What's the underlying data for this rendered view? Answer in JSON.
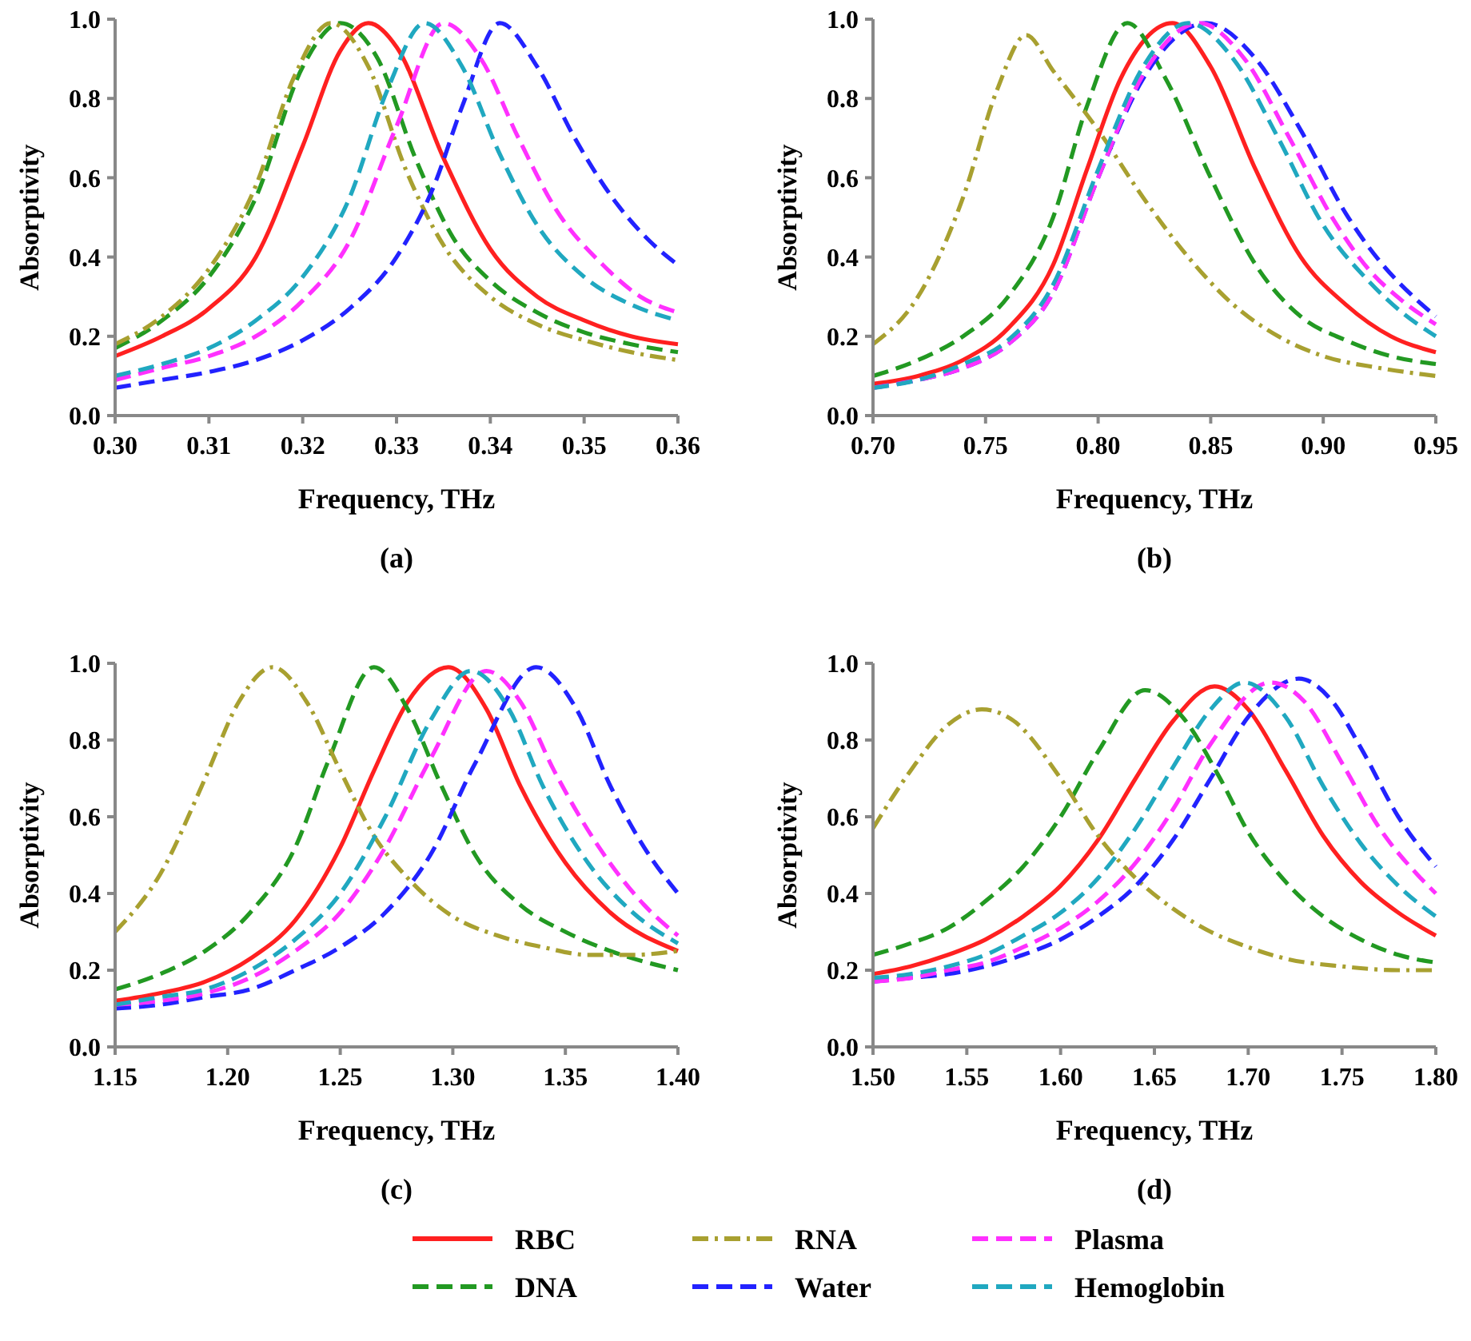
{
  "chart_data": [
    {
      "type": "line",
      "title": "(a)",
      "xlabel": "Frequency, THz",
      "ylabel": "Absorptivity",
      "xlim": [
        0.3,
        0.36
      ],
      "ylim": [
        0,
        1
      ],
      "xticks": [
        {
          "value": 0.3,
          "label": "0.30"
        },
        {
          "value": 0.31,
          "label": "0.31"
        },
        {
          "value": 0.32,
          "label": "0.32"
        },
        {
          "value": 0.33,
          "label": "0.33"
        },
        {
          "value": 0.34,
          "label": "0.34"
        },
        {
          "value": 0.35,
          "label": "0.35"
        },
        {
          "value": 0.36,
          "label": "0.36"
        }
      ],
      "yticks": [
        {
          "value": 0,
          "label": "0.0"
        },
        {
          "value": 0.2,
          "label": "0.2"
        },
        {
          "value": 0.4,
          "label": "0.4"
        },
        {
          "value": 0.6,
          "label": "0.6"
        },
        {
          "value": 0.8,
          "label": "0.8"
        },
        {
          "value": 1,
          "label": "1.0"
        }
      ],
      "grid": false,
      "legend": "bottom",
      "marker": "none",
      "series": [
        {
          "name": "RBC",
          "color": "#ff2020",
          "line_style": "solid",
          "x": [
            0.3,
            0.305,
            0.31,
            0.315,
            0.32,
            0.324,
            0.327,
            0.33,
            0.335,
            0.34,
            0.345,
            0.35,
            0.355,
            0.36
          ],
          "values": [
            0.15,
            0.2,
            0.27,
            0.4,
            0.68,
            0.92,
            0.99,
            0.93,
            0.65,
            0.42,
            0.3,
            0.24,
            0.2,
            0.18
          ]
        },
        {
          "name": "DNA",
          "color": "#229922",
          "line_style": "dashed",
          "x": [
            0.3,
            0.305,
            0.31,
            0.315,
            0.32,
            0.324,
            0.328,
            0.332,
            0.336,
            0.34,
            0.345,
            0.35,
            0.355,
            0.36
          ],
          "values": [
            0.17,
            0.24,
            0.35,
            0.55,
            0.88,
            0.99,
            0.9,
            0.65,
            0.45,
            0.34,
            0.26,
            0.21,
            0.18,
            0.16
          ]
        },
        {
          "name": "RNA",
          "color": "#a8a030",
          "line_style": "dashdot",
          "x": [
            0.3,
            0.305,
            0.31,
            0.315,
            0.319,
            0.323,
            0.327,
            0.331,
            0.335,
            0.34,
            0.345,
            0.35,
            0.355,
            0.36
          ],
          "values": [
            0.18,
            0.25,
            0.37,
            0.58,
            0.85,
            0.99,
            0.88,
            0.62,
            0.43,
            0.3,
            0.23,
            0.19,
            0.16,
            0.14
          ]
        },
        {
          "name": "Water",
          "color": "#2222ff",
          "line_style": "dashed",
          "x": [
            0.3,
            0.305,
            0.31,
            0.315,
            0.32,
            0.325,
            0.33,
            0.334,
            0.337,
            0.341,
            0.345,
            0.349,
            0.353,
            0.357,
            0.36
          ],
          "values": [
            0.07,
            0.09,
            0.11,
            0.14,
            0.19,
            0.27,
            0.4,
            0.58,
            0.78,
            0.99,
            0.88,
            0.7,
            0.55,
            0.44,
            0.38
          ]
        },
        {
          "name": "Plasma",
          "color": "#ff30ff",
          "line_style": "dashed",
          "x": [
            0.3,
            0.305,
            0.31,
            0.315,
            0.32,
            0.325,
            0.33,
            0.335,
            0.339,
            0.343,
            0.347,
            0.352,
            0.356,
            0.36
          ],
          "values": [
            0.09,
            0.12,
            0.15,
            0.2,
            0.29,
            0.44,
            0.73,
            0.99,
            0.9,
            0.7,
            0.52,
            0.38,
            0.3,
            0.26
          ]
        },
        {
          "name": "Hemoglobin",
          "color": "#20a8c0",
          "line_style": "dashed",
          "x": [
            0.3,
            0.305,
            0.31,
            0.315,
            0.32,
            0.325,
            0.329,
            0.333,
            0.337,
            0.341,
            0.345,
            0.35,
            0.355,
            0.36
          ],
          "values": [
            0.1,
            0.13,
            0.17,
            0.24,
            0.35,
            0.55,
            0.82,
            0.99,
            0.88,
            0.66,
            0.48,
            0.35,
            0.28,
            0.24
          ]
        }
      ]
    },
    {
      "type": "line",
      "title": "(b)",
      "xlabel": "Frequency, THz",
      "ylabel": "Absorptivity",
      "xlim": [
        0.7,
        0.95
      ],
      "ylim": [
        0,
        1
      ],
      "xticks": [
        {
          "value": 0.7,
          "label": "0.70"
        },
        {
          "value": 0.75,
          "label": "0.75"
        },
        {
          "value": 0.8,
          "label": "0.80"
        },
        {
          "value": 0.85,
          "label": "0.85"
        },
        {
          "value": 0.9,
          "label": "0.90"
        },
        {
          "value": 0.95,
          "label": "0.95"
        }
      ],
      "yticks": [
        {
          "value": 0,
          "label": "0.0"
        },
        {
          "value": 0.2,
          "label": "0.2"
        },
        {
          "value": 0.4,
          "label": "0.4"
        },
        {
          "value": 0.6,
          "label": "0.6"
        },
        {
          "value": 0.8,
          "label": "0.8"
        },
        {
          "value": 1,
          "label": "1.0"
        }
      ],
      "grid": false,
      "marker": "none",
      "series": [
        {
          "color": "#ff2020",
          "line_style": "solid",
          "x": [
            0.7,
            0.72,
            0.74,
            0.76,
            0.78,
            0.795,
            0.81,
            0.833,
            0.85,
            0.87,
            0.89,
            0.91,
            0.93,
            0.95
          ],
          "values": [
            0.08,
            0.1,
            0.14,
            0.22,
            0.38,
            0.62,
            0.85,
            0.99,
            0.88,
            0.62,
            0.4,
            0.28,
            0.2,
            0.16
          ]
        },
        {
          "color": "#229922",
          "line_style": "dashed",
          "x": [
            0.7,
            0.72,
            0.74,
            0.76,
            0.78,
            0.795,
            0.813,
            0.83,
            0.85,
            0.87,
            0.89,
            0.91,
            0.93,
            0.95
          ],
          "values": [
            0.1,
            0.14,
            0.2,
            0.3,
            0.5,
            0.78,
            0.99,
            0.85,
            0.6,
            0.38,
            0.25,
            0.19,
            0.15,
            0.13
          ]
        },
        {
          "color": "#a8a030",
          "line_style": "dashdot",
          "x": [
            0.7,
            0.72,
            0.74,
            0.755,
            0.768,
            0.78,
            0.8,
            0.82,
            0.84,
            0.86,
            0.88,
            0.9,
            0.925,
            0.95
          ],
          "values": [
            0.18,
            0.3,
            0.55,
            0.82,
            0.96,
            0.87,
            0.72,
            0.55,
            0.4,
            0.28,
            0.2,
            0.15,
            0.12,
            0.1
          ]
        },
        {
          "color": "#2222ff",
          "line_style": "dashed",
          "x": [
            0.7,
            0.72,
            0.74,
            0.76,
            0.78,
            0.8,
            0.82,
            0.848,
            0.87,
            0.89,
            0.91,
            0.925,
            0.94,
            0.95
          ],
          "values": [
            0.07,
            0.09,
            0.12,
            0.18,
            0.31,
            0.6,
            0.85,
            0.99,
            0.9,
            0.72,
            0.51,
            0.39,
            0.3,
            0.25
          ]
        },
        {
          "color": "#ff30ff",
          "line_style": "dashed",
          "x": [
            0.7,
            0.72,
            0.74,
            0.76,
            0.78,
            0.8,
            0.82,
            0.845,
            0.865,
            0.885,
            0.905,
            0.92,
            0.935,
            0.95
          ],
          "values": [
            0.07,
            0.09,
            0.12,
            0.18,
            0.31,
            0.6,
            0.86,
            0.99,
            0.9,
            0.7,
            0.49,
            0.37,
            0.29,
            0.23
          ]
        },
        {
          "color": "#20a8c0",
          "line_style": "dashed",
          "x": [
            0.7,
            0.72,
            0.74,
            0.76,
            0.78,
            0.8,
            0.82,
            0.84,
            0.86,
            0.88,
            0.9,
            0.92,
            0.935,
            0.95
          ],
          "values": [
            0.07,
            0.09,
            0.13,
            0.19,
            0.33,
            0.62,
            0.88,
            0.99,
            0.9,
            0.7,
            0.48,
            0.34,
            0.26,
            0.2
          ]
        }
      ]
    },
    {
      "type": "line",
      "title": "(c)",
      "xlabel": "Frequency, THz",
      "ylabel": "Absorptivity",
      "xlim": [
        1.15,
        1.4
      ],
      "ylim": [
        0,
        1
      ],
      "xticks": [
        {
          "value": 1.15,
          "label": "1.15"
        },
        {
          "value": 1.2,
          "label": "1.20"
        },
        {
          "value": 1.25,
          "label": "1.25"
        },
        {
          "value": 1.3,
          "label": "1.30"
        },
        {
          "value": 1.35,
          "label": "1.35"
        },
        {
          "value": 1.4,
          "label": "1.40"
        }
      ],
      "yticks": [
        {
          "value": 0,
          "label": "0.0"
        },
        {
          "value": 0.2,
          "label": "0.2"
        },
        {
          "value": 0.4,
          "label": "0.4"
        },
        {
          "value": 0.6,
          "label": "0.6"
        },
        {
          "value": 0.8,
          "label": "0.8"
        },
        {
          "value": 1,
          "label": "1.0"
        }
      ],
      "grid": false,
      "marker": "none",
      "series": [
        {
          "color": "#ff2020",
          "line_style": "solid",
          "x": [
            1.15,
            1.17,
            1.19,
            1.21,
            1.23,
            1.25,
            1.265,
            1.28,
            1.298,
            1.315,
            1.33,
            1.35,
            1.37,
            1.4
          ],
          "values": [
            0.12,
            0.14,
            0.17,
            0.23,
            0.33,
            0.52,
            0.72,
            0.9,
            0.99,
            0.88,
            0.68,
            0.48,
            0.35,
            0.25
          ]
        },
        {
          "color": "#229922",
          "line_style": "dashed",
          "x": [
            1.15,
            1.17,
            1.19,
            1.21,
            1.23,
            1.245,
            1.265,
            1.28,
            1.295,
            1.31,
            1.33,
            1.35,
            1.37,
            1.4
          ],
          "values": [
            0.15,
            0.19,
            0.25,
            0.35,
            0.52,
            0.75,
            0.99,
            0.88,
            0.68,
            0.5,
            0.37,
            0.3,
            0.25,
            0.2
          ]
        },
        {
          "color": "#a8a030",
          "line_style": "dashdot",
          "x": [
            1.15,
            1.17,
            1.19,
            1.205,
            1.22,
            1.235,
            1.25,
            1.265,
            1.28,
            1.3,
            1.32,
            1.34,
            1.36,
            1.38,
            1.4
          ],
          "values": [
            0.3,
            0.45,
            0.7,
            0.9,
            0.99,
            0.9,
            0.72,
            0.55,
            0.44,
            0.34,
            0.29,
            0.26,
            0.24,
            0.24,
            0.25
          ]
        },
        {
          "color": "#2222ff",
          "line_style": "dashed",
          "x": [
            1.15,
            1.17,
            1.19,
            1.21,
            1.23,
            1.25,
            1.27,
            1.29,
            1.31,
            1.337,
            1.355,
            1.37,
            1.385,
            1.4
          ],
          "values": [
            0.1,
            0.11,
            0.13,
            0.15,
            0.2,
            0.26,
            0.35,
            0.5,
            0.74,
            0.99,
            0.88,
            0.68,
            0.52,
            0.4
          ]
        },
        {
          "color": "#ff30ff",
          "line_style": "dashed",
          "x": [
            1.15,
            1.17,
            1.19,
            1.21,
            1.23,
            1.25,
            1.27,
            1.29,
            1.315,
            1.33,
            1.345,
            1.365,
            1.385,
            1.4
          ],
          "values": [
            0.11,
            0.12,
            0.14,
            0.18,
            0.25,
            0.35,
            0.52,
            0.75,
            0.98,
            0.9,
            0.72,
            0.52,
            0.37,
            0.29
          ]
        },
        {
          "color": "#20a8c0",
          "line_style": "dashed",
          "x": [
            1.15,
            1.17,
            1.19,
            1.21,
            1.23,
            1.25,
            1.27,
            1.29,
            1.308,
            1.325,
            1.34,
            1.36,
            1.38,
            1.4
          ],
          "values": [
            0.11,
            0.13,
            0.15,
            0.2,
            0.28,
            0.4,
            0.6,
            0.85,
            0.98,
            0.88,
            0.68,
            0.48,
            0.35,
            0.27
          ]
        }
      ]
    },
    {
      "type": "line",
      "title": "(d)",
      "xlabel": "Frequency, THz",
      "ylabel": "Absorptivity",
      "xlim": [
        1.5,
        1.8
      ],
      "ylim": [
        0,
        1
      ],
      "xticks": [
        {
          "value": 1.5,
          "label": "1.50"
        },
        {
          "value": 1.55,
          "label": "1.55"
        },
        {
          "value": 1.6,
          "label": "1.60"
        },
        {
          "value": 1.65,
          "label": "1.65"
        },
        {
          "value": 1.7,
          "label": "1.70"
        },
        {
          "value": 1.75,
          "label": "1.75"
        },
        {
          "value": 1.8,
          "label": "1.80"
        }
      ],
      "yticks": [
        {
          "value": 0,
          "label": "0.0"
        },
        {
          "value": 0.2,
          "label": "0.2"
        },
        {
          "value": 0.4,
          "label": "0.4"
        },
        {
          "value": 0.6,
          "label": "0.6"
        },
        {
          "value": 0.8,
          "label": "0.8"
        },
        {
          "value": 1,
          "label": "1.0"
        }
      ],
      "grid": false,
      "marker": "none",
      "series": [
        {
          "color": "#ff2020",
          "line_style": "solid",
          "x": [
            1.5,
            1.52,
            1.54,
            1.56,
            1.58,
            1.6,
            1.62,
            1.64,
            1.66,
            1.682,
            1.7,
            1.72,
            1.74,
            1.76,
            1.78,
            1.8
          ],
          "values": [
            0.19,
            0.21,
            0.24,
            0.28,
            0.34,
            0.42,
            0.54,
            0.7,
            0.85,
            0.94,
            0.88,
            0.72,
            0.55,
            0.43,
            0.35,
            0.29
          ]
        },
        {
          "color": "#229922",
          "line_style": "dashed",
          "x": [
            1.5,
            1.52,
            1.54,
            1.56,
            1.58,
            1.6,
            1.62,
            1.645,
            1.665,
            1.685,
            1.7,
            1.72,
            1.74,
            1.76,
            1.78,
            1.8
          ],
          "values": [
            0.24,
            0.27,
            0.31,
            0.38,
            0.47,
            0.6,
            0.77,
            0.93,
            0.86,
            0.7,
            0.56,
            0.43,
            0.34,
            0.28,
            0.24,
            0.22
          ]
        },
        {
          "color": "#a8a030",
          "line_style": "dashdot",
          "x": [
            1.5,
            1.52,
            1.54,
            1.558,
            1.575,
            1.6,
            1.62,
            1.64,
            1.66,
            1.68,
            1.7,
            1.72,
            1.75,
            1.78,
            1.8
          ],
          "values": [
            0.57,
            0.72,
            0.84,
            0.88,
            0.85,
            0.7,
            0.55,
            0.44,
            0.36,
            0.3,
            0.26,
            0.23,
            0.21,
            0.2,
            0.2
          ]
        },
        {
          "color": "#2222ff",
          "line_style": "dashed",
          "x": [
            1.5,
            1.52,
            1.54,
            1.56,
            1.58,
            1.6,
            1.62,
            1.64,
            1.66,
            1.68,
            1.7,
            1.727,
            1.745,
            1.76,
            1.78,
            1.8
          ],
          "values": [
            0.17,
            0.18,
            0.19,
            0.21,
            0.24,
            0.28,
            0.34,
            0.42,
            0.54,
            0.7,
            0.86,
            0.96,
            0.9,
            0.78,
            0.6,
            0.47
          ]
        },
        {
          "color": "#ff30ff",
          "line_style": "dashed",
          "x": [
            1.5,
            1.52,
            1.54,
            1.56,
            1.58,
            1.6,
            1.62,
            1.64,
            1.66,
            1.68,
            1.712,
            1.73,
            1.75,
            1.77,
            1.79,
            1.8
          ],
          "values": [
            0.17,
            0.18,
            0.2,
            0.22,
            0.26,
            0.31,
            0.38,
            0.48,
            0.62,
            0.79,
            0.95,
            0.9,
            0.74,
            0.57,
            0.45,
            0.4
          ]
        },
        {
          "color": "#20a8c0",
          "line_style": "dashed",
          "x": [
            1.5,
            1.52,
            1.54,
            1.56,
            1.58,
            1.6,
            1.62,
            1.64,
            1.66,
            1.68,
            1.698,
            1.72,
            1.74,
            1.76,
            1.78,
            1.8
          ],
          "values": [
            0.18,
            0.19,
            0.21,
            0.24,
            0.29,
            0.35,
            0.44,
            0.57,
            0.73,
            0.88,
            0.95,
            0.86,
            0.68,
            0.53,
            0.42,
            0.34
          ]
        }
      ]
    }
  ]
}
